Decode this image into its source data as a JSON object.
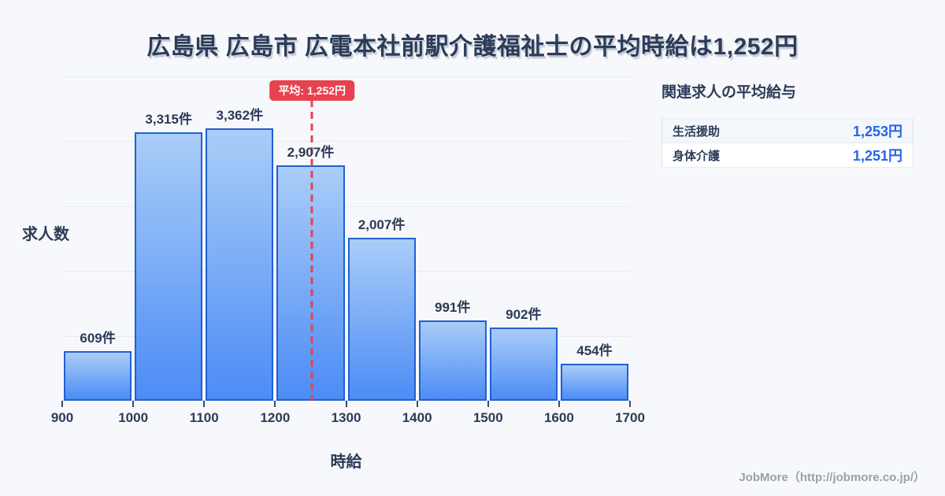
{
  "chart_data": {
    "type": "bar",
    "title": "広島県 広島市 広電本社前駅介護福祉士の平均時給は1,252円",
    "xlabel": "時給",
    "ylabel": "求人数",
    "xlim": [
      900,
      1700
    ],
    "ylim": [
      0,
      4000
    ],
    "grid_interval": 800,
    "grid": true,
    "x_ticks": [
      900,
      1000,
      1100,
      1200,
      1300,
      1400,
      1500,
      1600,
      1700
    ],
    "categories": [
      "900-1000",
      "1000-1100",
      "1100-1200",
      "1200-1300",
      "1300-1400",
      "1400-1500",
      "1500-1600",
      "1600-1700"
    ],
    "values": [
      609,
      3315,
      3362,
      2907,
      2007,
      991,
      902,
      454
    ],
    "bar_labels": [
      "609件",
      "3,315件",
      "3,362件",
      "2,907件",
      "2,007件",
      "991件",
      "902件",
      "454件"
    ],
    "average": {
      "value": 1252,
      "label": "平均: 1,252円"
    },
    "colors": {
      "background": "#f7f8fb",
      "bar_gradient_top": "#aacdf8",
      "bar_gradient_bottom": "#4c8cf5",
      "bar_border": "#2060d2",
      "average_red": "#e8414f",
      "grid": "#e7ebf2",
      "text_dark": "#2c3b58",
      "value_blue": "#2563eb"
    }
  },
  "side_panel": {
    "heading": "関連求人の平均給与",
    "rows": [
      {
        "label": "生活援助",
        "value": "1,253円"
      },
      {
        "label": "身体介護",
        "value": "1,251円"
      }
    ]
  },
  "footer": {
    "credit": "JobMore（http://jobmore.co.jp/）"
  }
}
